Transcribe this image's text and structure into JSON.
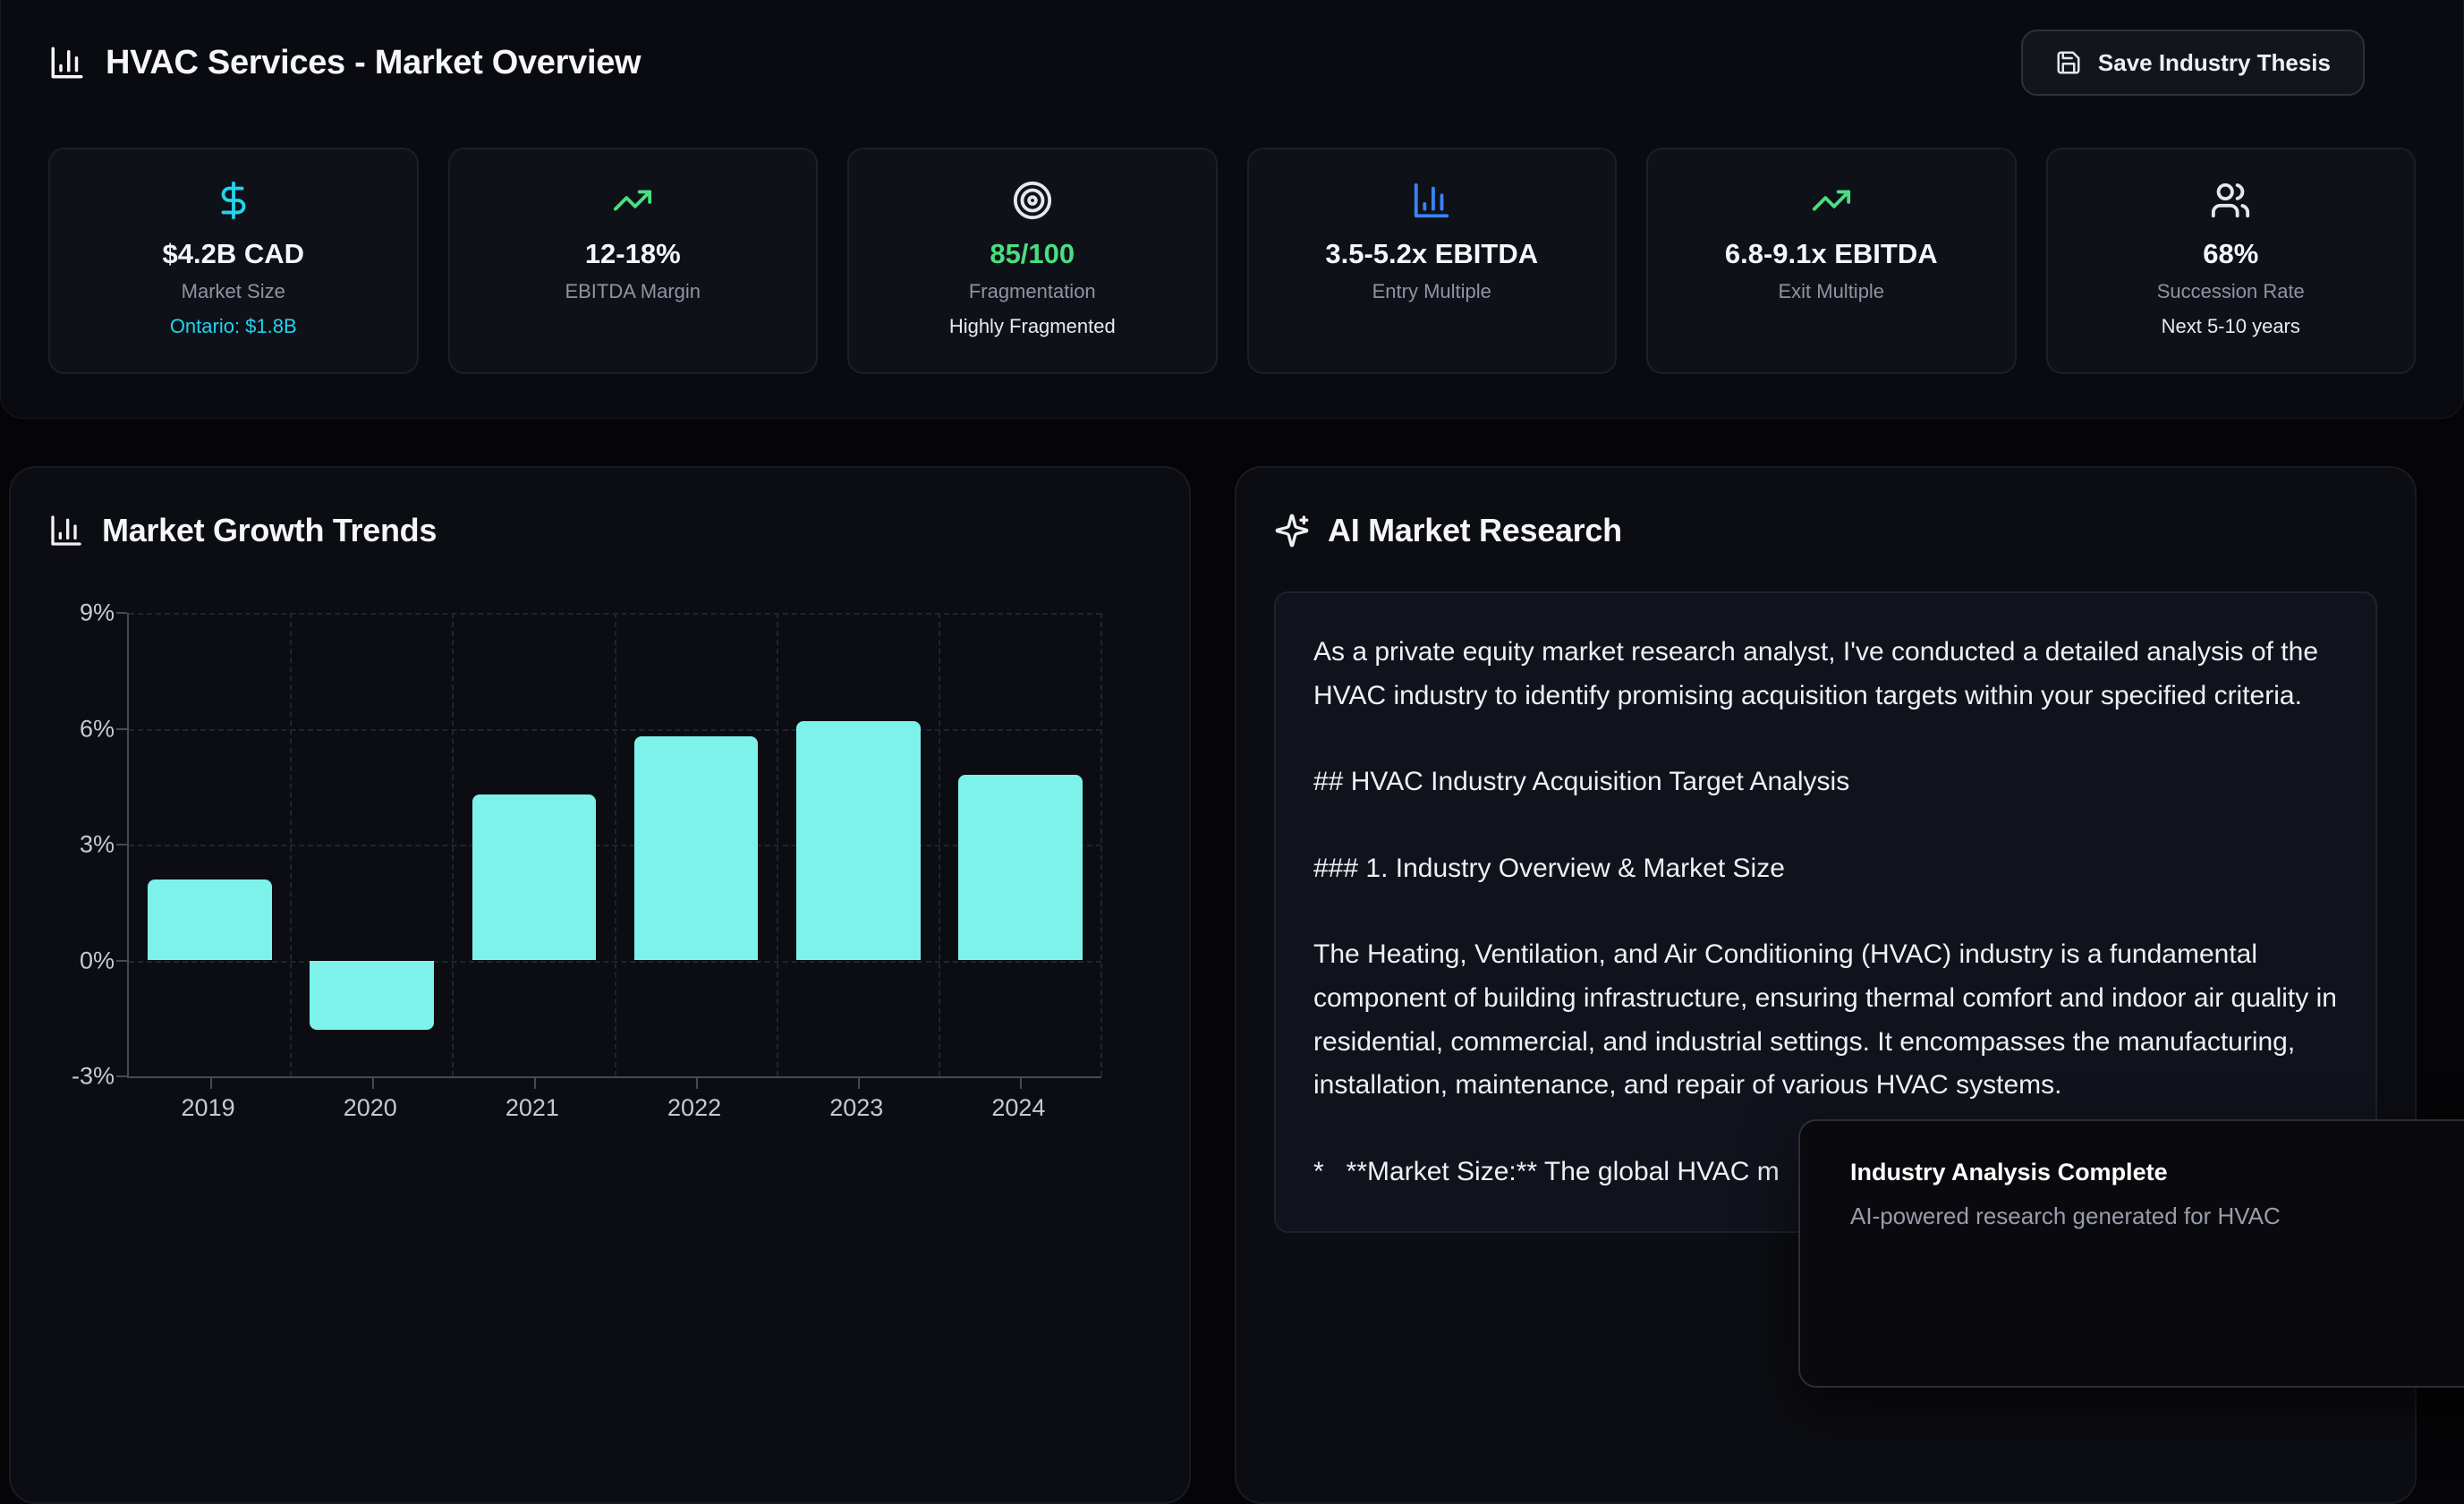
{
  "header": {
    "icon": "bar-chart-icon",
    "title": "HVAC Services - Market Overview",
    "save_button": {
      "icon": "save-icon",
      "label": "Save Industry Thesis"
    }
  },
  "stats": {
    "cards": [
      {
        "icon": "dollar-sign-icon",
        "icon_color": "#22d3ee",
        "value": "$4.2B CAD",
        "label": "Market Size",
        "sub": "Ontario: $1.8B",
        "sub_color": "#22d3ee"
      },
      {
        "icon": "trending-up-icon",
        "icon_color": "#4ade80",
        "value": "12-18%",
        "label": "EBITDA Margin",
        "sub": ""
      },
      {
        "icon": "target-icon",
        "icon_color": "#e5e7eb",
        "value": "85/100",
        "value_color": "#4ade80",
        "label": "Fragmentation",
        "sub": "Highly Fragmented",
        "sub_color": "#e5e7eb"
      },
      {
        "icon": "bar-chart-icon",
        "icon_color": "#3b82f6",
        "value": "3.5-5.2x EBITDA",
        "label": "Entry Multiple",
        "sub": ""
      },
      {
        "icon": "trending-up-icon",
        "icon_color": "#4ade80",
        "value": "6.8-9.1x EBITDA",
        "label": "Exit Multiple",
        "sub": ""
      },
      {
        "icon": "users-icon",
        "icon_color": "#e5e7eb",
        "value": "68%",
        "label": "Succession Rate",
        "sub": "Next 5-10 years",
        "sub_color": "#e5e7eb"
      }
    ]
  },
  "chart_panel": {
    "icon": "bar-chart-icon",
    "title": "Market Growth Trends"
  },
  "chart_data": {
    "type": "bar",
    "title": "Market Growth Trends",
    "categories": [
      "2019",
      "2020",
      "2021",
      "2022",
      "2023",
      "2024"
    ],
    "values": [
      2.1,
      -1.8,
      4.3,
      5.8,
      6.2,
      4.8
    ],
    "xlabel": "",
    "ylabel": "",
    "ylim": [
      -3,
      9
    ],
    "yticks": [
      9,
      6,
      3,
      0,
      -3
    ],
    "ytick_suffix": "%",
    "bar_color": "#7df2eb",
    "grid": true,
    "grid_style": "dashed",
    "legend": false
  },
  "research_panel": {
    "icon": "sparkles-icon",
    "title": "AI Market Research",
    "paragraphs": [
      "As a private equity market research analyst, I've conducted a detailed analysis of the HVAC industry to identify promising acquisition targets within your specified criteria.",
      "## HVAC Industry Acquisition Target Analysis",
      "### 1. Industry Overview & Market Size",
      "The Heating, Ventilation, and Air Conditioning (HVAC) industry is a fundamental component of building infrastructure, ensuring thermal comfort and indoor air quality in residential, commercial, and industrial settings. It encompasses the manufacturing, installation, maintenance, and repair of various HVAC systems.",
      "*   **Market Size:** The global HVAC m"
    ]
  },
  "toast": {
    "title": "Industry Analysis Complete",
    "subtitle": "AI-powered research generated for HVAC"
  },
  "colors": {
    "accent_cyan": "#22d3ee",
    "accent_green": "#4ade80",
    "accent_blue": "#3b82f6",
    "bar_fill": "#7df2eb",
    "text_muted": "#8f94a0"
  }
}
